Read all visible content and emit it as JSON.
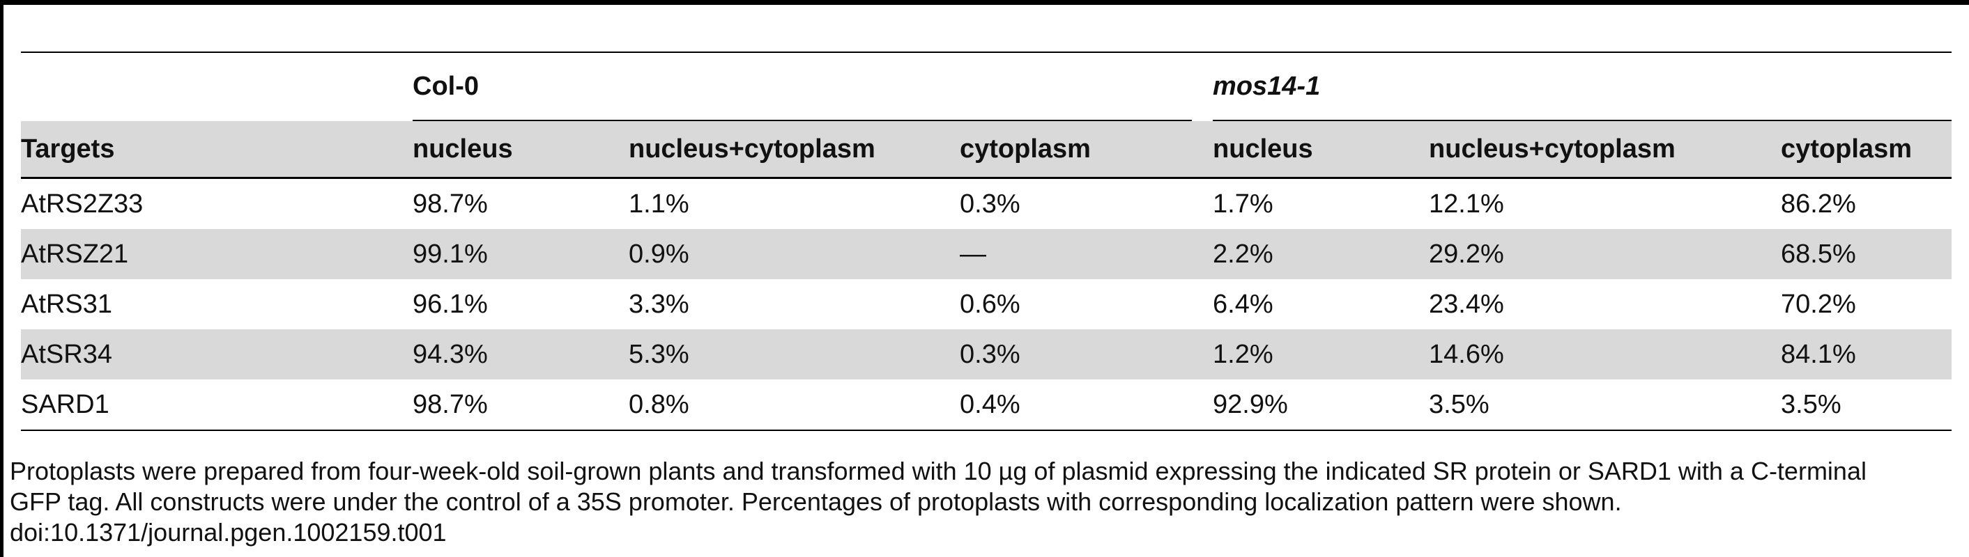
{
  "table": {
    "group_headers": [
      "",
      "Col-0",
      "mos14-1"
    ],
    "columns": [
      "Targets",
      "nucleus",
      "nucleus+cytoplasm",
      "cytoplasm",
      "nucleus",
      "nucleus+cytoplasm",
      "cytoplasm"
    ],
    "rows": [
      [
        "AtRS2Z33",
        "98.7%",
        "1.1%",
        "0.3%",
        "1.7%",
        "12.1%",
        "86.2%"
      ],
      [
        "AtRSZ21",
        "99.1%",
        "0.9%",
        "—",
        "2.2%",
        "29.2%",
        "68.5%"
      ],
      [
        "AtRS31",
        "96.1%",
        "3.3%",
        "0.6%",
        "6.4%",
        "23.4%",
        "70.2%"
      ],
      [
        "AtSR34",
        "94.3%",
        "5.3%",
        "0.3%",
        "1.2%",
        "14.6%",
        "84.1%"
      ],
      [
        "SARD1",
        "98.7%",
        "0.8%",
        "0.4%",
        "92.9%",
        "3.5%",
        "3.5%"
      ]
    ]
  },
  "footnote": {
    "line1": "Protoplasts were prepared from four-week-old soil-grown plants and transformed with 10 µg of plasmid expressing the indicated SR protein or SARD1 with a C-terminal",
    "line2": "GFP tag. All constructs were under the control of a 35S promoter. Percentages of protoplasts with corresponding localization pattern were shown.",
    "doi": "doi:10.1371/journal.pgen.1002159.t001"
  }
}
